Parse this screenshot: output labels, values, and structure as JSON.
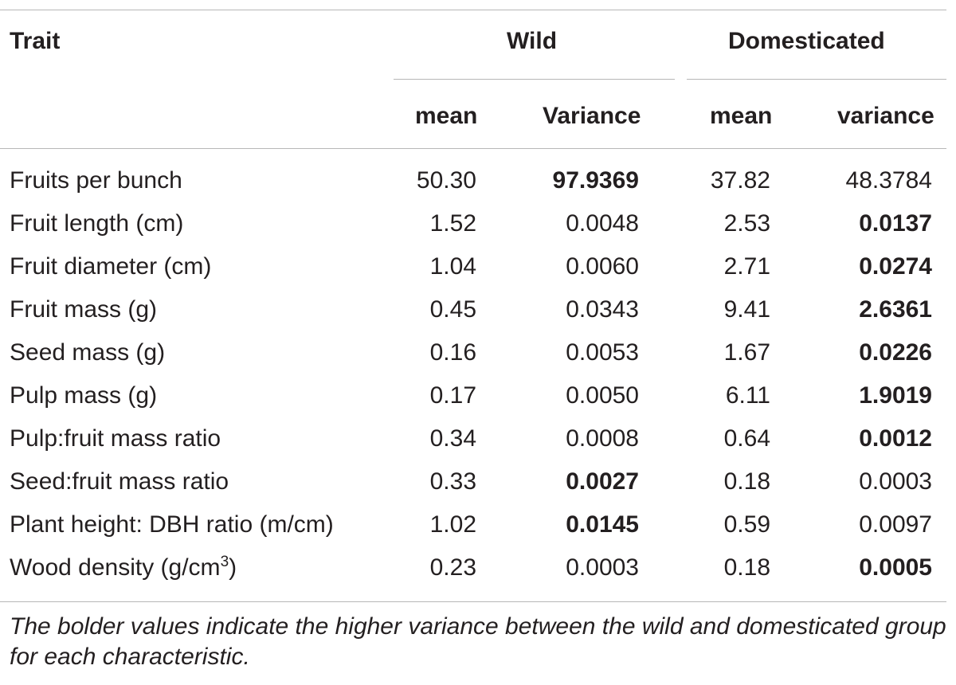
{
  "headers": {
    "trait": "Trait",
    "wild": "Wild",
    "domesticated": "Domesticated",
    "wild_mean": "mean",
    "wild_variance": "Variance",
    "dom_mean": "mean",
    "dom_variance": "variance"
  },
  "rows": [
    {
      "trait": "Fruits per bunch",
      "wild_mean": "50.30",
      "wild_var": "97.9369",
      "dom_mean": "37.82",
      "dom_var": "48.3784",
      "higher": "wild"
    },
    {
      "trait": "Fruit length (cm)",
      "wild_mean": "1.52",
      "wild_var": "0.0048",
      "dom_mean": "2.53",
      "dom_var": "0.0137",
      "higher": "dom"
    },
    {
      "trait": "Fruit diameter (cm)",
      "wild_mean": "1.04",
      "wild_var": "0.0060",
      "dom_mean": "2.71",
      "dom_var": "0.0274",
      "higher": "dom"
    },
    {
      "trait": "Fruit mass (g)",
      "wild_mean": "0.45",
      "wild_var": "0.0343",
      "dom_mean": "9.41",
      "dom_var": "2.6361",
      "higher": "dom"
    },
    {
      "trait": "Seed mass (g)",
      "wild_mean": "0.16",
      "wild_var": "0.0053",
      "dom_mean": "1.67",
      "dom_var": "0.0226",
      "higher": "dom"
    },
    {
      "trait": "Pulp mass (g)",
      "wild_mean": "0.17",
      "wild_var": "0.0050",
      "dom_mean": "6.11",
      "dom_var": "1.9019",
      "higher": "dom"
    },
    {
      "trait": "Pulp:fruit mass ratio",
      "wild_mean": "0.34",
      "wild_var": "0.0008",
      "dom_mean": "0.64",
      "dom_var": "0.0012",
      "higher": "dom"
    },
    {
      "trait": "Seed:fruit mass ratio",
      "wild_mean": "0.33",
      "wild_var": "0.0027",
      "dom_mean": "0.18",
      "dom_var": "0.0003",
      "higher": "wild"
    },
    {
      "trait": "Plant height: DBH ratio (m/cm)",
      "wild_mean": "1.02",
      "wild_var": "0.0145",
      "dom_mean": "0.59",
      "dom_var": "0.0097",
      "higher": "wild"
    },
    {
      "trait": "Wood density (g/cm",
      "trait_sup": "3",
      "trait_tail": ")",
      "wild_mean": "0.23",
      "wild_var": "0.0003",
      "dom_mean": "0.18",
      "dom_var": "0.0005",
      "higher": "dom"
    }
  ],
  "footnote": "The bolder values indicate the higher variance between the wild and domesticated group for each characteristic."
}
